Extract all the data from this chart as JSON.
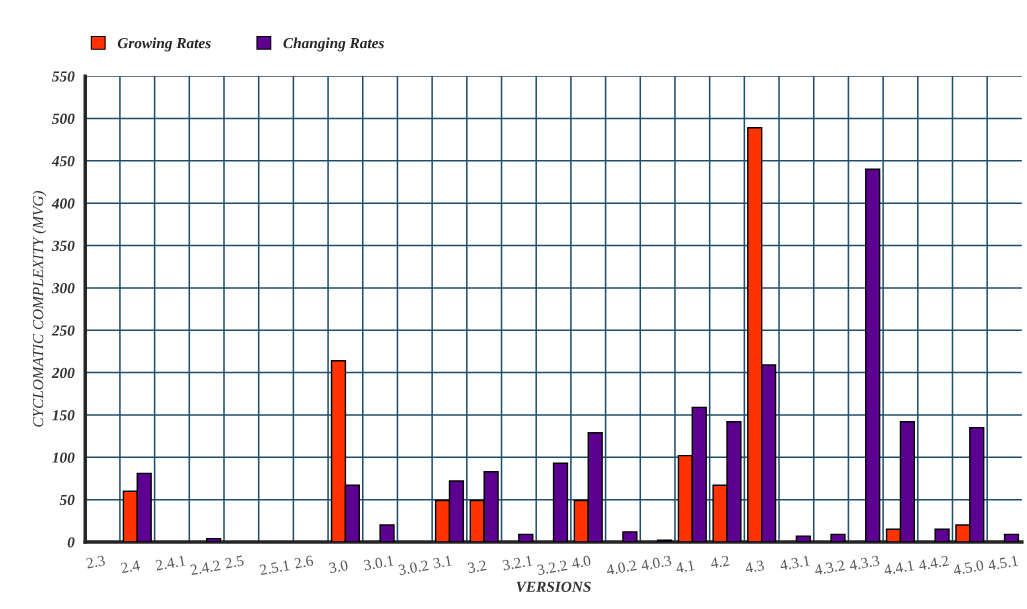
{
  "chart_data": {
    "type": "bar",
    "xlabel": "VERSIONS",
    "ylabel": "CYCLOMATIC COMPLEXITY (MVG)",
    "categories": [
      "2.3",
      "2.4",
      "2.4.1",
      "2.4.2",
      "2.5",
      "2.5.1",
      "2.6",
      "3.0",
      "3.0.1",
      "3.0.2",
      "3.1",
      "3.2",
      "3.2.1",
      "3.2.2",
      "4.0",
      "4.0.2",
      "4.0.3",
      "4.1",
      "4.2",
      "4.3",
      "4.3.1",
      "4.3.2",
      "4.3.3",
      "4.4.1",
      "4.4.2",
      "4.5.0",
      "4.5.1"
    ],
    "series": [
      {
        "name": "Growing Rates",
        "color": "#ff3300",
        "values": [
          null,
          60,
          null,
          null,
          null,
          null,
          null,
          214,
          null,
          null,
          49,
          49,
          null,
          null,
          49,
          null,
          null,
          102,
          67,
          489,
          null,
          null,
          null,
          15,
          null,
          20,
          null
        ]
      },
      {
        "name": "Changing Rates",
        "color": "#5b0090",
        "values": [
          null,
          81,
          null,
          4,
          null,
          null,
          null,
          67,
          20,
          null,
          72,
          83,
          9,
          93,
          129,
          12,
          2,
          159,
          142,
          209,
          7,
          9,
          440,
          142,
          15,
          135,
          9
        ]
      }
    ],
    "ylim": [
      0,
      550
    ],
    "yticks": [
      0,
      50,
      100,
      150,
      200,
      250,
      300,
      350,
      400,
      450,
      500,
      550
    ],
    "grid": true,
    "legend": "top left"
  }
}
